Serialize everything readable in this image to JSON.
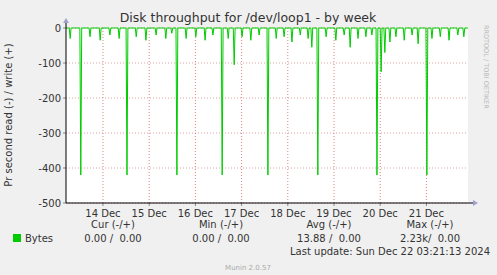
{
  "chart_data": {
    "type": "line",
    "title": "Disk throughput for /dev/loop1 - by week",
    "ylabel": "Pr second read (-) / write (+)",
    "x": [
      13.7,
      13.77,
      13.79,
      13.81,
      14.0,
      14.02,
      14.04,
      14.2,
      14.22,
      14.24,
      14.42,
      14.44,
      14.46,
      14.63,
      14.65,
      14.67,
      14.83,
      14.85,
      14.87,
      15.0,
      15.02,
      15.04,
      15.2,
      15.22,
      15.24,
      15.41,
      15.43,
      15.45,
      15.63,
      15.65,
      15.67,
      15.84,
      15.86,
      15.88,
      15.97,
      15.99,
      16.01,
      16.08,
      16.1,
      16.12,
      16.28,
      16.3,
      16.32,
      16.49,
      16.51,
      16.53,
      16.69,
      16.71,
      16.73,
      16.86,
      16.88,
      16.9,
      17.06,
      17.08,
      17.1,
      17.19,
      17.21,
      17.23,
      17.32,
      17.34,
      17.36,
      17.49,
      17.51,
      17.53,
      17.68,
      17.7,
      17.72,
      17.86,
      17.88,
      17.9,
      18.05,
      18.07,
      18.09,
      18.23,
      18.25,
      18.27,
      18.4,
      18.42,
      18.44,
      18.57,
      18.59,
      18.61,
      18.75,
      18.77,
      18.79,
      18.92,
      18.94,
      18.96,
      19.0,
      19.02,
      19.04,
      19.13,
      19.15,
      19.17,
      19.31,
      19.33,
      19.35,
      19.52,
      19.54,
      19.56,
      19.7,
      19.72,
      19.74,
      19.83,
      19.85,
      19.87,
      20.0,
      20.02,
      20.04,
      20.17,
      20.19,
      20.21,
      20.3,
      20.32,
      20.34,
      20.41,
      20.43,
      20.45,
      20.5,
      20.52,
      20.54,
      20.58,
      20.6,
      20.62,
      20.69,
      20.71,
      20.73,
      20.82,
      20.84,
      20.86,
      21.0,
      21.02,
      21.04,
      21.17,
      21.19,
      21.21,
      21.3,
      21.32,
      21.34,
      21.49,
      21.51,
      21.53,
      21.6,
      21.62,
      21.64,
      21.78,
      21.8,
      21.82,
      21.97,
      21.99,
      22.01,
      22.16,
      22.18,
      22.2,
      22.29,
      22.31,
      22.33,
      22.4
    ],
    "series": [
      {
        "name": "Bytes",
        "color": "#00cc00",
        "values": [
          0,
          0,
          -30,
          0,
          0,
          -420,
          0,
          0,
          -25,
          0,
          0,
          -35,
          0,
          0,
          -20,
          0,
          0,
          -30,
          0,
          0,
          -420,
          0,
          0,
          -25,
          0,
          0,
          -35,
          0,
          0,
          -20,
          0,
          0,
          -30,
          0,
          0,
          -15,
          0,
          0,
          -420,
          0,
          0,
          -30,
          0,
          0,
          -25,
          0,
          0,
          -35,
          0,
          0,
          -20,
          0,
          0,
          -420,
          0,
          0,
          -30,
          0,
          0,
          -105,
          0,
          0,
          -25,
          0,
          0,
          -35,
          0,
          0,
          -20,
          0,
          0,
          -420,
          0,
          0,
          -30,
          0,
          0,
          -25,
          0,
          0,
          -40,
          0,
          0,
          -20,
          0,
          0,
          -30,
          0,
          0,
          -55,
          0,
          0,
          -420,
          0,
          0,
          -25,
          0,
          0,
          -35,
          0,
          0,
          -20,
          0,
          0,
          -55,
          0,
          0,
          -30,
          0,
          0,
          -25,
          0,
          0,
          -20,
          0,
          0,
          -420,
          0,
          0,
          -125,
          0,
          0,
          -70,
          0,
          0,
          -40,
          0,
          0,
          -25,
          0,
          0,
          -35,
          0,
          0,
          -20,
          0,
          0,
          -45,
          0,
          0,
          -420,
          0,
          0,
          -30,
          0,
          0,
          -25,
          0,
          0,
          -35,
          0,
          0,
          -20,
          0,
          0,
          -25,
          0,
          0
        ]
      }
    ],
    "xlim": [
      13.7,
      22.4
    ],
    "xticks": [
      {
        "value": 14.5,
        "label": "14 Dec"
      },
      {
        "value": 15.5,
        "label": "15 Dec"
      },
      {
        "value": 16.5,
        "label": "16 Dec"
      },
      {
        "value": 17.5,
        "label": "17 Dec"
      },
      {
        "value": 18.5,
        "label": "18 Dec"
      },
      {
        "value": 19.5,
        "label": "19 Dec"
      },
      {
        "value": 20.5,
        "label": "20 Dec"
      },
      {
        "value": 21.5,
        "label": "21 Dec"
      }
    ],
    "ylim": [
      -500,
      0
    ],
    "yticks": [
      0,
      -100,
      -200,
      -300,
      -400,
      -500
    ],
    "grid": true,
    "stats": [
      {
        "label": "Cur (-/+)",
        "value": "0.00 /  0.00"
      },
      {
        "label": "Min (-/+)",
        "value": "0.00 /  0.00"
      },
      {
        "label": "Avg (-/+)",
        "value": "13.88 /  0.00"
      },
      {
        "label": "Max (-/+)",
        "value": "2.23k/  0.00"
      }
    ],
    "footer": "Last update: Sun Dec 22 03:21:13 2024",
    "generator": "Munin 2.0.57",
    "watermark": "RRDTOOL / TOBI OETIKER"
  }
}
